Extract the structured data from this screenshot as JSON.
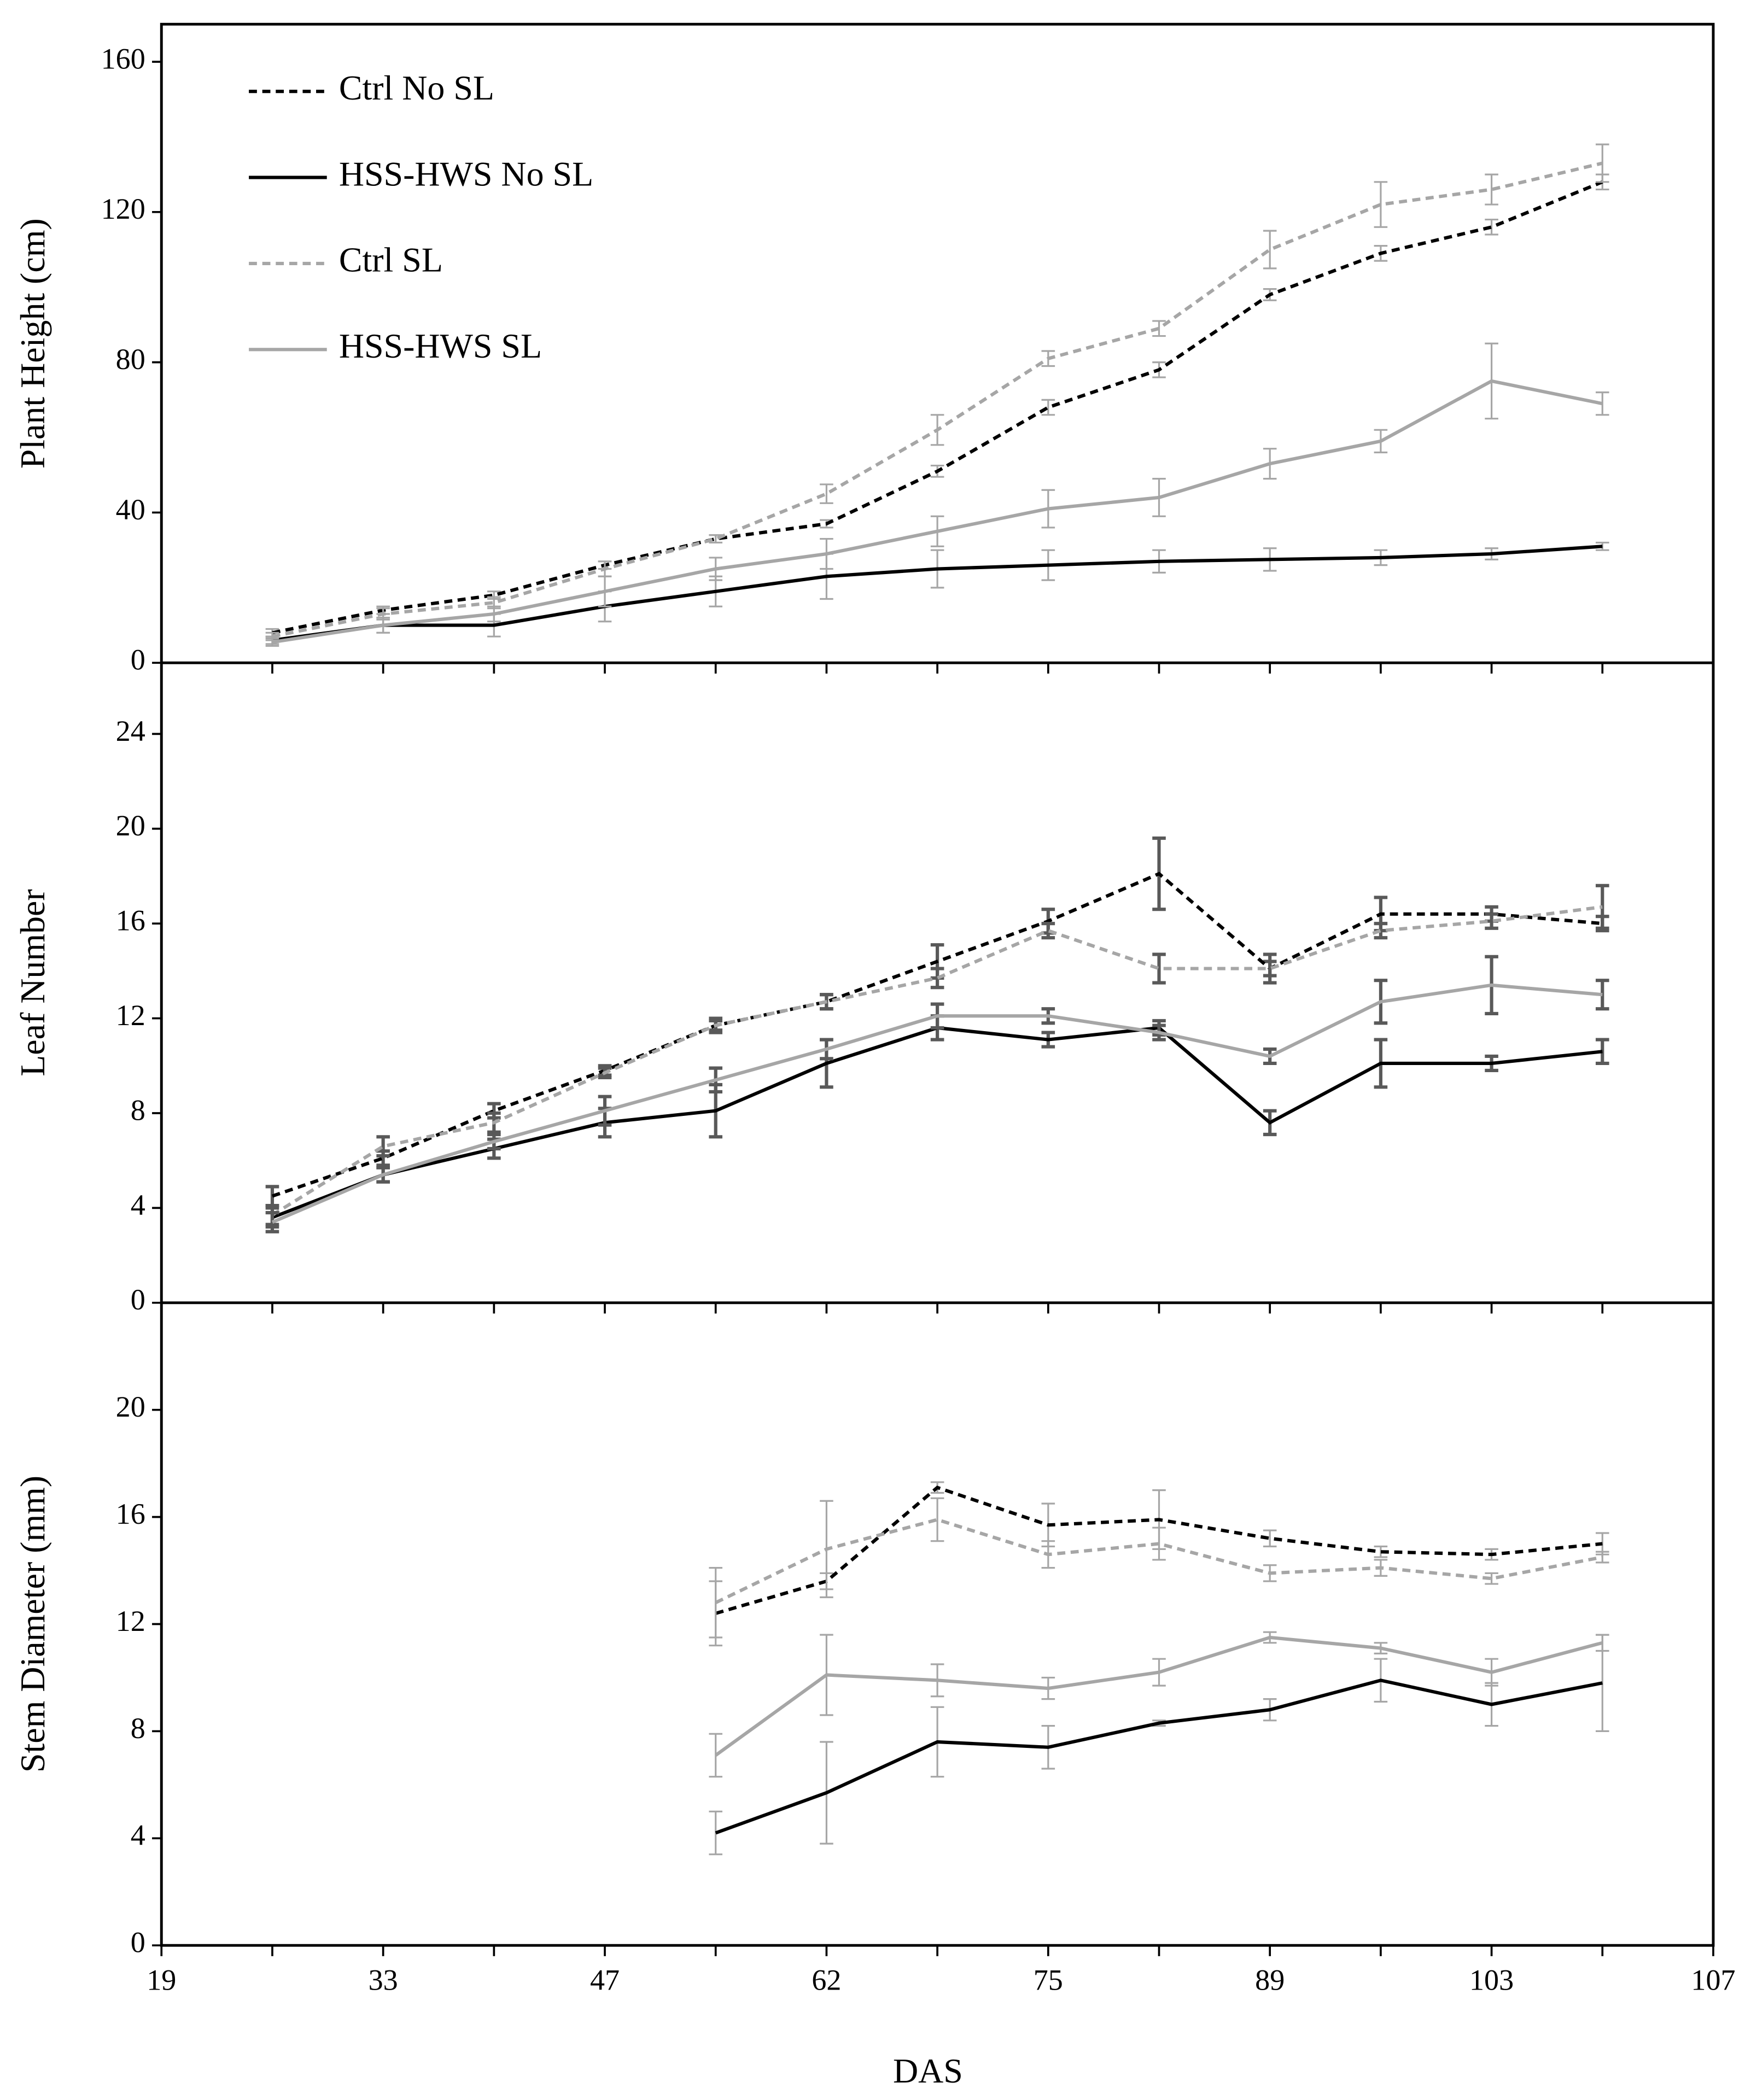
{
  "chart_data": {
    "type": "line",
    "xlabel": "DAS",
    "categories": [
      19,
      null,
      33,
      null,
      47,
      null,
      62,
      null,
      75,
      null,
      89,
      null,
      103,
      null,
      107
    ],
    "series": [
      {
        "name": "Ctrl No SL",
        "color": "#000000",
        "dashed": true
      },
      {
        "name": "HSS-HWS No SL",
        "color": "#000000",
        "dashed": false
      },
      {
        "name": "Ctrl SL",
        "color": "#a6a6a6",
        "dashed": true
      },
      {
        "name": "HSS-HWS SL",
        "color": "#a6a6a6",
        "dashed": false
      }
    ],
    "panels": [
      {
        "ylabel": "Plant Height (cm)",
        "ylim": [
          0,
          170
        ],
        "yticks": [
          0,
          40,
          80,
          120,
          160
        ],
        "error_color": "#a6a6a6",
        "series": [
          {
            "values": [
              null,
              8,
              14,
              18,
              26,
              33,
              37,
              51,
              68,
              78,
              98,
              109,
              116,
              128,
              null
            ],
            "errors": [
              null,
              1,
              1,
              1,
              1,
              1,
              1,
              1.5,
              2,
              2,
              1.5,
              2,
              2,
              2,
              null
            ]
          },
          {
            "values": [
              null,
              6,
              10,
              10,
              15,
              19,
              23,
              25,
              26,
              27,
              27.5,
              28,
              29,
              31,
              null
            ],
            "errors": [
              null,
              1,
              2,
              3,
              4,
              4,
              6,
              5,
              4,
              3,
              3,
              2,
              1.5,
              1,
              null
            ]
          },
          {
            "values": [
              null,
              7,
              13,
              16,
              25,
              33,
              45,
              62,
              81,
              89,
              110,
              122,
              126,
              133,
              null
            ],
            "errors": [
              null,
              1,
              1.5,
              1.5,
              2,
              1,
              2.5,
              4,
              2,
              2,
              5,
              6,
              4,
              5,
              null
            ]
          },
          {
            "values": [
              null,
              5.5,
              10,
              13,
              19,
              25,
              29,
              35,
              41,
              44,
              53,
              59,
              75,
              69,
              null
            ],
            "errors": [
              null,
              1,
              2,
              2,
              4,
              3,
              4,
              4,
              5,
              5,
              4,
              3,
              10,
              3,
              null
            ]
          }
        ]
      },
      {
        "ylabel": "Leaf  Number",
        "ylim": [
          0,
          27
        ],
        "yticks": [
          0,
          4,
          8,
          12,
          16,
          20,
          24
        ],
        "error_color": "#595959",
        "series": [
          {
            "values": [
              null,
              4.5,
              6.1,
              8.1,
              9.8,
              11.7,
              12.7,
              14.4,
              16.1,
              18.1,
              14.1,
              16.4,
              16.4,
              16,
              null
            ],
            "errors": [
              null,
              0.4,
              0.3,
              0.3,
              0.2,
              0.2,
              0.3,
              0.7,
              0.5,
              1.5,
              0.3,
              0.7,
              0.3,
              0.3,
              null
            ]
          },
          {
            "values": [
              null,
              3.6,
              5.4,
              6.5,
              7.6,
              8.1,
              10.1,
              11.6,
              11.1,
              11.6,
              7.6,
              10.1,
              10.1,
              10.6,
              null
            ],
            "errors": [
              null,
              0.4,
              0.3,
              0.4,
              0.6,
              1.1,
              1.0,
              0.5,
              0.3,
              0.3,
              0.5,
              1.0,
              0.3,
              0.5,
              null
            ]
          },
          {
            "values": [
              null,
              3.7,
              6.6,
              7.6,
              9.7,
              11.7,
              12.7,
              13.7,
              15.7,
              14.1,
              14.1,
              15.7,
              16.1,
              16.7,
              null
            ],
            "errors": [
              null,
              0.4,
              0.4,
              0.4,
              0.2,
              0.3,
              0.3,
              0.4,
              0.3,
              0.6,
              0.6,
              0.3,
              0.3,
              0.9,
              null
            ]
          },
          {
            "values": [
              null,
              3.4,
              5.4,
              6.8,
              8.1,
              9.4,
              10.7,
              12.1,
              12.1,
              11.4,
              10.4,
              12.7,
              13.4,
              13.0,
              null
            ],
            "errors": [
              null,
              0.4,
              0.3,
              0.3,
              0.6,
              0.5,
              0.4,
              0.5,
              0.3,
              0.3,
              0.3,
              0.9,
              1.2,
              0.6,
              null
            ]
          }
        ]
      },
      {
        "ylabel": "Stem Diameter (mm)",
        "ylim": [
          0,
          24
        ],
        "yticks": [
          0,
          4,
          8,
          12,
          16,
          20
        ],
        "error_color": "#a6a6a6",
        "series": [
          {
            "values": [
              null,
              null,
              null,
              null,
              null,
              12.4,
              13.6,
              17.1,
              15.7,
              15.9,
              15.2,
              14.7,
              14.6,
              15.0,
              null
            ],
            "errors": [
              null,
              null,
              null,
              null,
              null,
              1.2,
              0.3,
              0.2,
              0.8,
              1.1,
              0.3,
              0.2,
              0.2,
              0.4,
              null
            ]
          },
          {
            "values": [
              null,
              null,
              null,
              null,
              null,
              4.2,
              5.7,
              7.6,
              7.4,
              8.3,
              8.8,
              9.9,
              9.0,
              9.8,
              null
            ],
            "errors": [
              null,
              null,
              null,
              null,
              null,
              0.8,
              1.9,
              1.3,
              0.8,
              0.1,
              0.4,
              0.8,
              0.8,
              1.8,
              null
            ]
          },
          {
            "values": [
              null,
              null,
              null,
              null,
              null,
              12.8,
              14.8,
              15.9,
              14.6,
              15.0,
              13.9,
              14.1,
              13.7,
              14.5,
              null
            ],
            "errors": [
              null,
              null,
              null,
              null,
              null,
              1.3,
              1.8,
              0.8,
              0.5,
              0.6,
              0.3,
              0.3,
              0.2,
              0.2,
              null
            ]
          },
          {
            "values": [
              null,
              null,
              null,
              null,
              null,
              7.1,
              10.1,
              9.9,
              9.6,
              10.2,
              11.5,
              11.1,
              10.2,
              11.3,
              null
            ],
            "errors": [
              null,
              null,
              null,
              null,
              null,
              0.8,
              1.5,
              0.6,
              0.4,
              0.5,
              0.2,
              0.2,
              0.5,
              0.3,
              null
            ]
          }
        ]
      }
    ]
  }
}
